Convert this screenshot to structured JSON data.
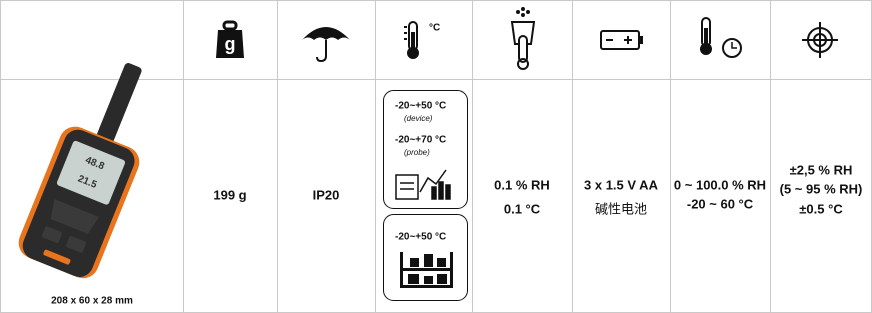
{
  "header": {
    "weight_icon_label": "g",
    "temperature_icon_label": "°C"
  },
  "row": {
    "dimensions": "208 x 60 x 28 mm",
    "weight": "199 g",
    "protection": "IP20",
    "temperature": {
      "operating": [
        {
          "range": "-20~+50 °C",
          "note": "(device)"
        },
        {
          "range": "-20~+70 °C",
          "note": "(probe)"
        }
      ],
      "storage": "-20~+50 °C"
    },
    "resolution": [
      "0.1 % RH",
      "0.1 °C"
    ],
    "battery": [
      "3 x 1.5 V AA",
      "碱性电池"
    ],
    "measuring_range": [
      "0 ~ 100.0 % RH",
      "-20 ~ 60 °C"
    ],
    "accuracy": [
      "±2,5 % RH",
      "(5 ~ 95 % RH)",
      "±0.5 °C"
    ]
  }
}
